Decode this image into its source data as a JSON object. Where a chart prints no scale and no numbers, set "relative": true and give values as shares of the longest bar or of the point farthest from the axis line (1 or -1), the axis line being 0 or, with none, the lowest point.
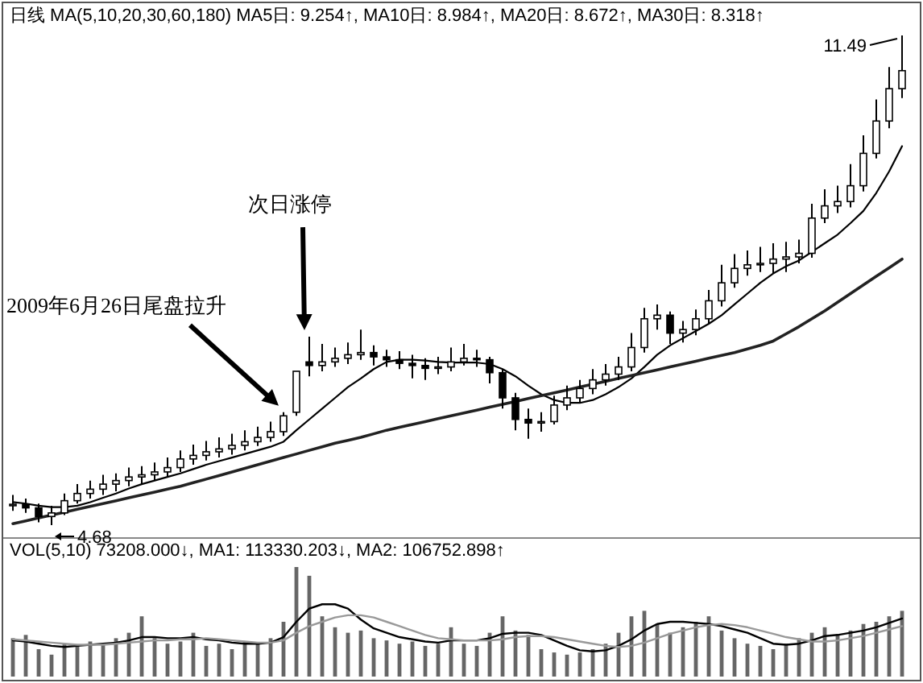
{
  "chart_data": [
    {
      "type": "candlestick",
      "title": "日线 MA(5,10,20,30,60,180) MA5日: 9.254↑, MA10日: 8.984↑, MA20日: 8.672↑, MA30日: 8.318↑",
      "categories": [
        null,
        null,
        null,
        null,
        null,
        null,
        null,
        null,
        null,
        null,
        null,
        null,
        null,
        null,
        null,
        null,
        null,
        null,
        null,
        null,
        null,
        null,
        null,
        null,
        null,
        null,
        null,
        null,
        null,
        null,
        null,
        null,
        null,
        null,
        null,
        null,
        null,
        null,
        null,
        null,
        null,
        null,
        null,
        null,
        null,
        null,
        null,
        null,
        null,
        null,
        null,
        null,
        null,
        null,
        null,
        null,
        null,
        null,
        null,
        null,
        null,
        null,
        null,
        null,
        null,
        null,
        null,
        null,
        null,
        null
      ],
      "ohlc": [
        [
          4.95,
          5.1,
          4.88,
          4.97
        ],
        [
          4.97,
          5.05,
          4.85,
          4.92
        ],
        [
          4.92,
          4.98,
          4.72,
          4.8
        ],
        [
          4.8,
          4.95,
          4.68,
          4.85
        ],
        [
          4.85,
          5.12,
          4.82,
          5.02
        ],
        [
          5.02,
          5.25,
          4.98,
          5.12
        ],
        [
          5.12,
          5.3,
          5.05,
          5.18
        ],
        [
          5.18,
          5.38,
          5.1,
          5.25
        ],
        [
          5.25,
          5.4,
          5.15,
          5.3
        ],
        [
          5.3,
          5.48,
          5.22,
          5.35
        ],
        [
          5.35,
          5.5,
          5.25,
          5.38
        ],
        [
          5.38,
          5.55,
          5.3,
          5.42
        ],
        [
          5.42,
          5.62,
          5.35,
          5.48
        ],
        [
          5.48,
          5.72,
          5.42,
          5.6
        ],
        [
          5.6,
          5.8,
          5.52,
          5.65
        ],
        [
          5.65,
          5.85,
          5.58,
          5.7
        ],
        [
          5.7,
          5.9,
          5.62,
          5.74
        ],
        [
          5.74,
          5.95,
          5.66,
          5.79
        ],
        [
          5.79,
          6.0,
          5.72,
          5.84
        ],
        [
          5.84,
          6.05,
          5.78,
          5.9
        ],
        [
          5.9,
          6.12,
          5.84,
          5.98
        ],
        [
          5.98,
          6.25,
          5.92,
          6.2
        ],
        [
          6.25,
          6.82,
          6.2,
          6.82
        ],
        [
          6.95,
          7.3,
          6.75,
          6.9
        ],
        [
          6.9,
          7.2,
          6.82,
          6.95
        ],
        [
          6.95,
          7.15,
          6.88,
          7.0
        ],
        [
          7.0,
          7.22,
          6.92,
          7.05
        ],
        [
          7.05,
          7.4,
          6.98,
          7.08
        ],
        [
          7.08,
          7.18,
          6.9,
          7.02
        ],
        [
          7.02,
          7.12,
          6.88,
          6.98
        ],
        [
          6.98,
          7.1,
          6.85,
          6.93
        ],
        [
          6.93,
          7.05,
          6.72,
          6.9
        ],
        [
          6.9,
          7.0,
          6.7,
          6.86
        ],
        [
          6.86,
          7.02,
          6.78,
          6.88
        ],
        [
          6.88,
          7.15,
          6.82,
          6.95
        ],
        [
          6.95,
          7.2,
          6.9,
          7.0
        ],
        [
          7.0,
          7.12,
          6.88,
          6.98
        ],
        [
          6.98,
          7.02,
          6.65,
          6.8
        ],
        [
          6.8,
          6.85,
          6.3,
          6.45
        ],
        [
          6.45,
          6.52,
          6.0,
          6.15
        ],
        [
          6.15,
          6.3,
          5.88,
          6.1
        ],
        [
          6.1,
          6.25,
          5.98,
          6.12
        ],
        [
          6.12,
          6.48,
          6.08,
          6.35
        ],
        [
          6.35,
          6.62,
          6.28,
          6.45
        ],
        [
          6.45,
          6.7,
          6.38,
          6.58
        ],
        [
          6.58,
          6.85,
          6.5,
          6.7
        ],
        [
          6.7,
          6.92,
          6.62,
          6.78
        ],
        [
          6.78,
          7.02,
          6.7,
          6.88
        ],
        [
          6.88,
          7.35,
          6.82,
          7.15
        ],
        [
          7.15,
          7.7,
          7.08,
          7.55
        ],
        [
          7.55,
          7.75,
          7.4,
          7.6
        ],
        [
          7.6,
          7.65,
          7.2,
          7.35
        ],
        [
          7.35,
          7.52,
          7.22,
          7.4
        ],
        [
          7.4,
          7.68,
          7.32,
          7.55
        ],
        [
          7.55,
          7.95,
          7.48,
          7.8
        ],
        [
          7.8,
          8.3,
          7.72,
          8.05
        ],
        [
          8.05,
          8.45,
          7.98,
          8.25
        ],
        [
          8.25,
          8.5,
          8.15,
          8.3
        ],
        [
          8.3,
          8.55,
          8.2,
          8.32
        ],
        [
          8.32,
          8.6,
          8.18,
          8.38
        ],
        [
          8.38,
          8.62,
          8.2,
          8.41
        ],
        [
          8.41,
          8.65,
          8.32,
          8.46
        ],
        [
          8.46,
          9.15,
          8.4,
          8.95
        ],
        [
          8.95,
          9.35,
          8.88,
          9.12
        ],
        [
          9.12,
          9.4,
          9.02,
          9.18
        ],
        [
          9.18,
          9.7,
          9.1,
          9.4
        ],
        [
          9.4,
          10.1,
          9.32,
          9.85
        ],
        [
          9.85,
          10.6,
          9.78,
          10.3
        ],
        [
          10.3,
          11.05,
          10.2,
          10.75
        ],
        [
          10.75,
          11.49,
          10.62,
          11.0
        ]
      ],
      "series": [
        {
          "type": "line",
          "color": "#000000",
          "values": [
            5.0,
            4.98,
            4.95,
            4.93,
            4.93,
            4.95,
            5.0,
            5.06,
            5.12,
            5.19,
            5.25,
            5.3,
            5.35,
            5.4,
            5.46,
            5.52,
            5.57,
            5.62,
            5.67,
            5.72,
            5.77,
            5.84,
            6.0,
            6.15,
            6.3,
            6.45,
            6.6,
            6.72,
            6.85,
            6.95,
            6.98,
            6.98,
            6.97,
            6.95,
            6.94,
            6.94,
            6.94,
            6.92,
            6.85,
            6.75,
            6.62,
            6.5,
            6.42,
            6.38,
            6.38,
            6.42,
            6.5,
            6.6,
            6.72,
            6.88,
            7.05,
            7.18,
            7.28,
            7.38,
            7.48,
            7.6,
            7.75,
            7.9,
            8.05,
            8.18,
            8.28,
            8.36,
            8.48,
            8.6,
            8.72,
            8.88,
            9.05,
            9.3,
            9.6,
            9.95
          ]
        },
        {
          "type": "line",
          "color": "#222222",
          "values": [
            4.7,
            4.74,
            4.78,
            4.82,
            4.86,
            4.9,
            4.94,
            4.98,
            5.02,
            5.06,
            5.1,
            5.14,
            5.18,
            5.22,
            5.27,
            5.32,
            5.37,
            5.42,
            5.47,
            5.52,
            5.57,
            5.62,
            5.67,
            5.72,
            5.77,
            5.82,
            5.86,
            5.9,
            5.95,
            6.0,
            6.04,
            6.08,
            6.12,
            6.16,
            6.2,
            6.24,
            6.28,
            6.32,
            6.36,
            6.4,
            6.44,
            6.48,
            6.52,
            6.56,
            6.6,
            6.64,
            6.68,
            6.72,
            6.76,
            6.8,
            6.84,
            6.88,
            6.92,
            6.96,
            7.0,
            7.04,
            7.08,
            7.13,
            7.18,
            7.24,
            7.34,
            7.44,
            7.55,
            7.66,
            7.78,
            7.9,
            8.02,
            8.14,
            8.26,
            8.38
          ]
        }
      ],
      "annotations": [
        "11.49",
        "4.68",
        "2009年6月26日尾盘拉升",
        "次日涨停"
      ]
    },
    {
      "type": "bar",
      "relative": true,
      "title": "VOL(5,10) 73208.000↓, MA1: 113330.203↓, MA2: 106752.898↑",
      "categories": [
        null,
        null,
        null,
        null,
        null,
        null,
        null,
        null,
        null,
        null,
        null,
        null,
        null,
        null,
        null,
        null,
        null,
        null,
        null,
        null,
        null,
        null,
        null,
        null,
        null,
        null,
        null,
        null,
        null,
        null,
        null,
        null,
        null,
        null,
        null,
        null,
        null,
        null,
        null,
        null,
        null,
        null,
        null,
        null,
        null,
        null,
        null,
        null,
        null,
        null,
        null,
        null,
        null,
        null,
        null,
        null,
        null,
        null,
        null,
        null,
        null,
        null,
        null,
        null,
        null,
        null,
        null,
        null,
        null,
        null
      ],
      "series": [
        {
          "type": "bar",
          "color": "#666666",
          "values": [
            0.35,
            0.38,
            0.25,
            0.2,
            0.3,
            0.28,
            0.32,
            0.3,
            0.35,
            0.4,
            0.55,
            0.35,
            0.3,
            0.32,
            0.4,
            0.28,
            0.3,
            0.25,
            0.32,
            0.3,
            0.35,
            0.5,
            1.0,
            0.92,
            0.55,
            0.45,
            0.4,
            0.42,
            0.35,
            0.33,
            0.3,
            0.32,
            0.28,
            0.3,
            0.45,
            0.3,
            0.28,
            0.4,
            0.55,
            0.42,
            0.38,
            0.25,
            0.22,
            0.2,
            0.22,
            0.25,
            0.3,
            0.4,
            0.55,
            0.6,
            0.48,
            0.4,
            0.45,
            0.5,
            0.55,
            0.42,
            0.35,
            0.3,
            0.28,
            0.25,
            0.3,
            0.35,
            0.4,
            0.45,
            0.38,
            0.42,
            0.48,
            0.5,
            0.55,
            0.6
          ]
        },
        {
          "type": "line",
          "color": "#000000",
          "values": [
            0.33,
            0.32,
            0.3,
            0.28,
            0.27,
            0.28,
            0.29,
            0.3,
            0.31,
            0.33,
            0.36,
            0.36,
            0.35,
            0.35,
            0.36,
            0.34,
            0.33,
            0.31,
            0.3,
            0.3,
            0.31,
            0.36,
            0.5,
            0.62,
            0.66,
            0.66,
            0.62,
            0.52,
            0.44,
            0.4,
            0.36,
            0.34,
            0.32,
            0.31,
            0.33,
            0.33,
            0.33,
            0.35,
            0.39,
            0.4,
            0.4,
            0.38,
            0.33,
            0.28,
            0.24,
            0.23,
            0.24,
            0.28,
            0.34,
            0.42,
            0.48,
            0.5,
            0.5,
            0.49,
            0.48,
            0.46,
            0.43,
            0.4,
            0.35,
            0.3,
            0.29,
            0.3,
            0.33,
            0.37,
            0.38,
            0.4,
            0.42,
            0.45,
            0.49,
            0.53
          ]
        },
        {
          "type": "line",
          "color": "#999999",
          "values": [
            0.34,
            0.33,
            0.32,
            0.31,
            0.3,
            0.29,
            0.29,
            0.29,
            0.3,
            0.31,
            0.32,
            0.33,
            0.33,
            0.34,
            0.34,
            0.35,
            0.34,
            0.33,
            0.32,
            0.31,
            0.31,
            0.33,
            0.4,
            0.46,
            0.5,
            0.54,
            0.56,
            0.56,
            0.54,
            0.5,
            0.46,
            0.42,
            0.38,
            0.35,
            0.34,
            0.33,
            0.33,
            0.33,
            0.34,
            0.36,
            0.37,
            0.37,
            0.36,
            0.34,
            0.32,
            0.3,
            0.28,
            0.27,
            0.28,
            0.31,
            0.35,
            0.39,
            0.42,
            0.45,
            0.47,
            0.48,
            0.47,
            0.45,
            0.42,
            0.39,
            0.36,
            0.34,
            0.32,
            0.32,
            0.33,
            0.35,
            0.37,
            0.4,
            0.43,
            0.46
          ]
        }
      ]
    }
  ]
}
